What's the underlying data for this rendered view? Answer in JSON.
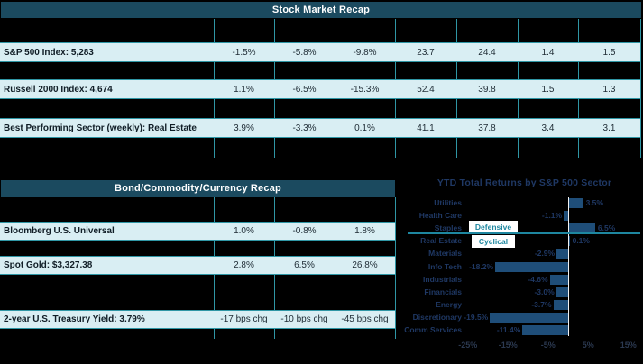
{
  "stock_table": {
    "title": "Stock Market Recap",
    "rows": [
      {
        "label": "S&P 500 Index: 5,283",
        "values": [
          "-1.5%",
          "-5.8%",
          "-9.8%",
          "23.7",
          "24.4",
          "1.4",
          "1.5"
        ]
      },
      {
        "label": "Russell 2000 Index: 4,674",
        "values": [
          "1.1%",
          "-6.5%",
          "-15.3%",
          "52.4",
          "39.8",
          "1.5",
          "1.3"
        ]
      },
      {
        "label": "Best Performing Sector (weekly): Real Estate",
        "values": [
          "3.9%",
          "-3.3%",
          "0.1%",
          "41.1",
          "37.8",
          "3.4",
          "3.1"
        ]
      }
    ]
  },
  "bond_table": {
    "title": "Bond/Commodity/Currency Recap",
    "rows": [
      {
        "label": "Bloomberg U.S. Universal",
        "values": [
          "1.0%",
          "-0.8%",
          "1.8%"
        ]
      },
      {
        "label": "Spot Gold: $3,327.38",
        "values": [
          "2.8%",
          "6.5%",
          "26.8%"
        ]
      },
      {
        "label": "2-year U.S. Treasury Yield: 3.79%",
        "values": [
          "-17 bps chg",
          "-10 bps chg",
          "-45 bps chg"
        ]
      }
    ]
  },
  "chart_data": {
    "type": "bar",
    "orientation": "horizontal",
    "title": "YTD Total Returns by S&P 500 Sector",
    "categories": [
      "Utilities",
      "Health Care",
      "Staples",
      "Real Estate",
      "Materials",
      "Info Tech",
      "Industrials",
      "Financials",
      "Energy",
      "Discretionary",
      "Comm Services"
    ],
    "values": [
      3.5,
      -1.1,
      6.5,
      0.1,
      -2.9,
      -18.2,
      -4.6,
      -3.0,
      -3.7,
      -19.5,
      -11.4
    ],
    "value_labels": [
      "3.5%",
      "-1.1%",
      "6.5%",
      "0.1%",
      "-2.9%",
      "-18.2%",
      "-4.6%",
      "-3.0%",
      "-3.7%",
      "-19.5%",
      "-11.4%"
    ],
    "x_ticks": [
      "-25%",
      "-15%",
      "-5%",
      "5%",
      "15%"
    ],
    "x_tick_values": [
      -25,
      -15,
      -5,
      5,
      15
    ],
    "xlim": [
      -27,
      18
    ],
    "group_divider_after": "Staples",
    "group_labels": {
      "defensive": "Defensive",
      "cyclical": "Cyclical"
    },
    "legend_position": "none",
    "grid": false
  },
  "colors": {
    "header_bg": "#1b4a5f",
    "row_bg": "#d9eef3",
    "border_teal": "#2f96a5",
    "label_text": "#101d26",
    "value_text": "#1d2a33",
    "chart_text": "#1f3864",
    "bar": "#1f4e79",
    "zero_line": "#f2f2f2",
    "group_text": "#1e87a0",
    "tick_text": "#2b3950"
  }
}
